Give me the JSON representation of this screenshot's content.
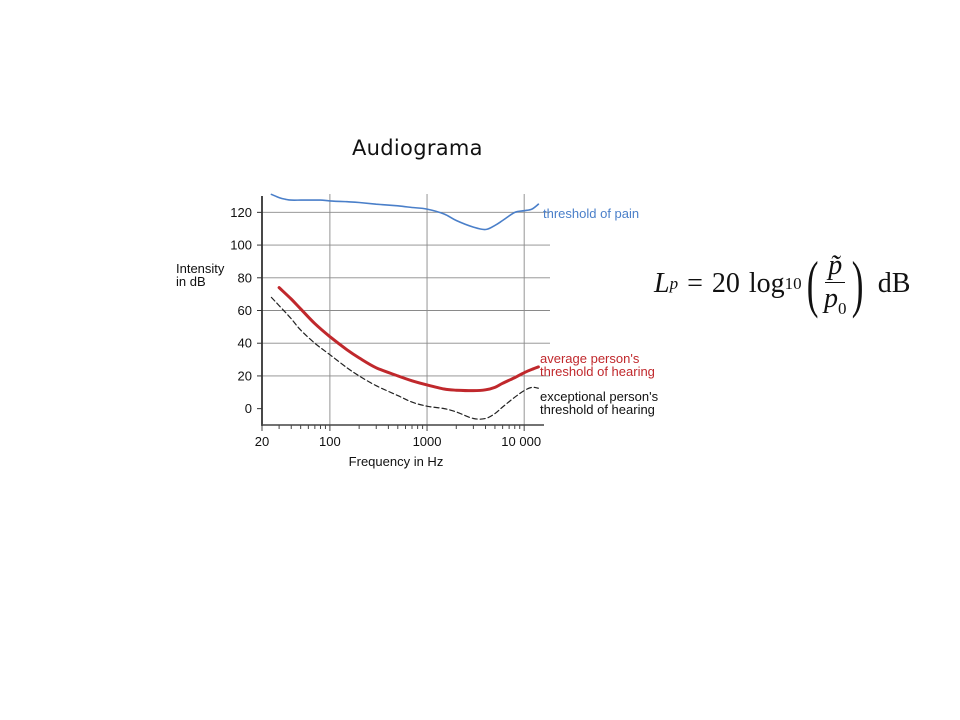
{
  "slide": {
    "title": "Audiograma"
  },
  "formula": {
    "lhs": "L",
    "lhs_sub": "p",
    "equals": "=",
    "coef": "20",
    "func": "log",
    "func_sub": "10",
    "numerator": "p̃",
    "denominator": "p",
    "denominator_sub": "0",
    "unit": "dB"
  },
  "chart_data": {
    "type": "line",
    "title": "",
    "xlabel": "Frequency in Hz",
    "ylabel": "Intensity\nin dB",
    "xscale": "log",
    "xlim": [
      20,
      16000
    ],
    "ylim": [
      -10,
      130
    ],
    "x_ticks": [
      {
        "value": 20,
        "label": "20"
      },
      {
        "value": 100,
        "label": "100"
      },
      {
        "value": 1000,
        "label": "1000"
      },
      {
        "value": 10000,
        "label": "10 000"
      }
    ],
    "y_ticks": [
      0,
      20,
      40,
      60,
      80,
      100,
      120
    ],
    "grid": true,
    "legend": "inline labels at right end of each curve",
    "series": [
      {
        "name": "threshold of pain",
        "color": "#4a7fc9",
        "style": "solid",
        "x": [
          25,
          30,
          35,
          40,
          50,
          60,
          80,
          100,
          150,
          200,
          300,
          500,
          700,
          1000,
          1500,
          2000,
          3000,
          4000,
          5000,
          6000,
          8000,
          10000,
          12000,
          14000
        ],
        "y": [
          131,
          129,
          128,
          127.5,
          127.5,
          127.5,
          127.5,
          127,
          126.5,
          126,
          125,
          124,
          123,
          122,
          119,
          115,
          111,
          109.5,
          112,
          115,
          120,
          121,
          122,
          125
        ]
      },
      {
        "name": "average person's\nthreshold of hearing",
        "color": "#c0282c",
        "style": "solid",
        "x": [
          30,
          40,
          50,
          70,
          100,
          150,
          200,
          300,
          500,
          700,
          1000,
          1500,
          2000,
          3000,
          4000,
          5000,
          6000,
          8000,
          10000,
          12000,
          14000
        ],
        "y": [
          74,
          67,
          61,
          52,
          44,
          36,
          31,
          25,
          20,
          17,
          14.5,
          12,
          11.3,
          11,
          11.5,
          13,
          15.5,
          19,
          22,
          24,
          25.5
        ]
      },
      {
        "name": "exceptional person's\nthreshold of hearing",
        "color": "#222222",
        "style": "dashed",
        "x": [
          25,
          30,
          40,
          50,
          70,
          100,
          150,
          200,
          300,
          500,
          700,
          1000,
          1500,
          2000,
          3000,
          4000,
          5000,
          6000,
          8000,
          10000,
          12000,
          14000
        ],
        "y": [
          68,
          63,
          55,
          48,
          40,
          33,
          25,
          20,
          14,
          8,
          4,
          1.5,
          0,
          -2,
          -6,
          -6,
          -3,
          1,
          7,
          11,
          13,
          12.5
        ]
      }
    ]
  }
}
